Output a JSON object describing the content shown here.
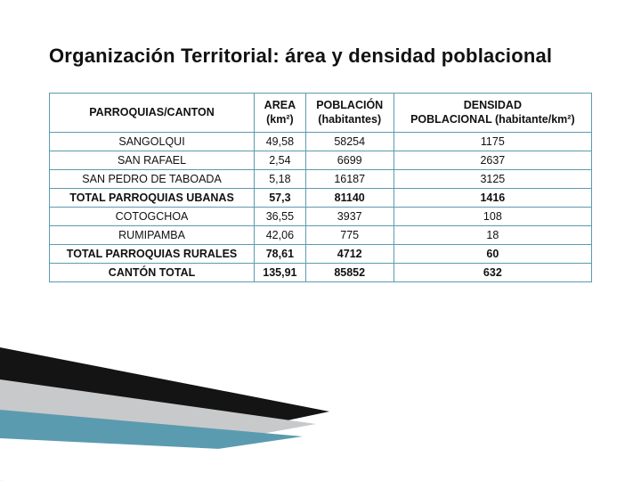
{
  "title": "Organización Territorial: área y densidad poblacional",
  "table": {
    "border_color": "#5b9bb0",
    "header_bg": "#ffffff",
    "cell_bg": "#ffffff",
    "text_color": "#111111",
    "font_size": 12.5,
    "columns": [
      "PARROQUIAS/CANTON",
      "AREA (km²)",
      "POBLACIÓN (habitantes)",
      "DENSIDAD POBLACIONAL (habitante/km²)"
    ],
    "rows": [
      {
        "cells": [
          "SANGOLQUI",
          "49,58",
          "58254",
          "1175"
        ],
        "bold": false
      },
      {
        "cells": [
          "SAN RAFAEL",
          "2,54",
          "6699",
          "2637"
        ],
        "bold": false
      },
      {
        "cells": [
          "SAN PEDRO DE TABOADA",
          "5,18",
          "16187",
          "3125"
        ],
        "bold": false
      },
      {
        "cells": [
          "TOTAL PARROQUIAS UBANAS",
          "57,3",
          "81140",
          "1416"
        ],
        "bold": true
      },
      {
        "cells": [
          "COTOGCHOA",
          "36,55",
          "3937",
          "108"
        ],
        "bold": false
      },
      {
        "cells": [
          "RUMIPAMBA",
          "42,06",
          "775",
          "18"
        ],
        "bold": false
      },
      {
        "cells": [
          "TOTAL PARROQUIAS RURALES",
          "78,61",
          "4712",
          "60"
        ],
        "bold": true
      },
      {
        "cells": [
          "CANTÓN TOTAL",
          "135,91",
          "85852",
          "632"
        ],
        "bold": true
      }
    ]
  },
  "wedge": {
    "colors": {
      "dark": "#141414",
      "gray": "#c8c9ca",
      "teal": "#5b9bb0",
      "white": "#ffffff"
    }
  }
}
